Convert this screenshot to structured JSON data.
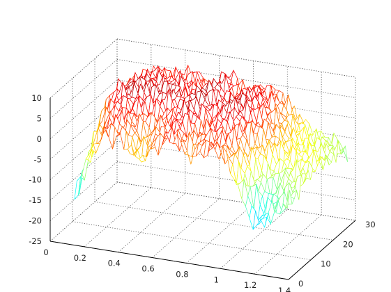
{
  "chart_data": {
    "type": "surface",
    "title": "",
    "xlabel": "",
    "ylabel": "",
    "zlabel": "",
    "xlim": [
      0,
      1.4
    ],
    "ylim": [
      0,
      30
    ],
    "zlim": [
      -25,
      10
    ],
    "grid": true,
    "colormap": "jet",
    "x_ticks": [
      "0",
      "0.2",
      "0.4",
      "0.6",
      "0.8",
      "1",
      "1.2",
      "1.4"
    ],
    "y_ticks": [
      "0",
      "10",
      "20",
      "30"
    ],
    "z_ticks": [
      "-25",
      "-20",
      "-15",
      "-10",
      "-5",
      "0",
      "5",
      "10"
    ],
    "x_tick_values": [
      0,
      0.2,
      0.4,
      0.6,
      0.8,
      1.0,
      1.2,
      1.4
    ],
    "y_tick_values": [
      0,
      10,
      20,
      30
    ],
    "z_tick_values": [
      -25,
      -20,
      -15,
      -10,
      -5,
      0,
      5,
      10
    ],
    "surface_profile": {
      "x": [
        0.0,
        0.1,
        0.2,
        0.3,
        0.4,
        0.5,
        0.6,
        0.7,
        0.8,
        0.9,
        1.0,
        1.1,
        1.2,
        1.3,
        1.4
      ],
      "z_near_edge": [
        -23,
        -20,
        -6,
        3,
        2,
        -4,
        2,
        4,
        0,
        3,
        2,
        -6,
        -16,
        -10,
        -7
      ],
      "z_ridge": [
        -10,
        -2,
        6,
        8,
        7,
        8,
        6,
        9,
        6,
        8,
        6,
        2,
        -2,
        -3,
        -4
      ]
    }
  }
}
